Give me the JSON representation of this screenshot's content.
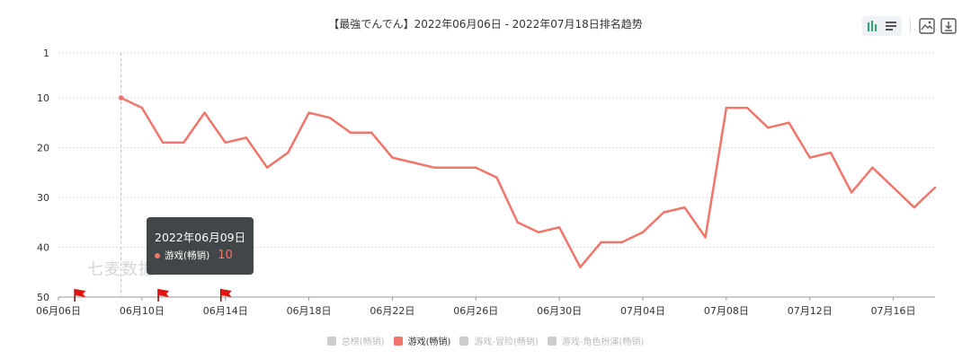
{
  "chart_data": {
    "type": "line",
    "title": "【最強でんでん】2022年06月06日 - 2022年07月18日排名趋势",
    "xlabel": "",
    "ylabel": "",
    "y_inverted": true,
    "ylim": [
      1,
      50
    ],
    "y_ticks": [
      "1",
      "10",
      "20",
      "30",
      "40",
      "50"
    ],
    "x_tick_labels": [
      "06月06日",
      "06月10日",
      "06月14日",
      "06月18日",
      "06月22日",
      "06月26日",
      "06月30日",
      "07月04日",
      "07月08日",
      "07月12日",
      "07月16日"
    ],
    "grid": true,
    "legend_position": "bottom",
    "x_start": "2022-06-06",
    "x_end": "2022-07-18",
    "series": [
      {
        "name": "游戏(畅销)",
        "color": "#f0756b",
        "x": [
          "2022-06-09",
          "2022-06-10",
          "2022-06-11",
          "2022-06-12",
          "2022-06-13",
          "2022-06-14",
          "2022-06-15",
          "2022-06-16",
          "2022-06-17",
          "2022-06-18",
          "2022-06-19",
          "2022-06-20",
          "2022-06-21",
          "2022-06-22",
          "2022-06-23",
          "2022-06-24",
          "2022-06-25",
          "2022-06-26",
          "2022-06-27",
          "2022-06-28",
          "2022-06-29",
          "2022-06-30",
          "2022-07-01",
          "2022-07-02",
          "2022-07-03",
          "2022-07-04",
          "2022-07-05",
          "2022-07-06",
          "2022-07-07",
          "2022-07-08",
          "2022-07-09",
          "2022-07-10",
          "2022-07-11",
          "2022-07-12",
          "2022-07-13",
          "2022-07-14",
          "2022-07-15",
          "2022-07-16",
          "2022-07-17",
          "2022-07-18"
        ],
        "values": [
          10,
          12,
          19,
          19,
          13,
          19,
          18,
          24,
          21,
          13,
          14,
          17,
          17,
          22,
          23,
          24,
          24,
          24,
          26,
          35,
          37,
          36,
          44,
          39,
          39,
          37,
          33,
          32,
          38,
          12,
          12,
          16,
          15,
          22,
          21,
          29,
          24,
          28,
          32,
          28
        ]
      }
    ],
    "flag_markers": [
      "2022-06-07",
      "2022-06-11",
      "2022-06-14"
    ]
  },
  "tooltip": {
    "date": "2022年06月09日",
    "series_name": "游戏(畅销)",
    "value": "10"
  },
  "watermark": "七麦数据",
  "legend": [
    {
      "label": "总榜(畅销)",
      "active": false
    },
    {
      "label": "游戏(畅销)",
      "active": true
    },
    {
      "label": "游戏-冒险(畅销)",
      "active": false
    },
    {
      "label": "游戏-角色扮演(畅销)",
      "active": false
    }
  ],
  "toolbar": {
    "icons": [
      "bar-chart-icon",
      "list-icon",
      "image-icon",
      "download-icon"
    ]
  }
}
